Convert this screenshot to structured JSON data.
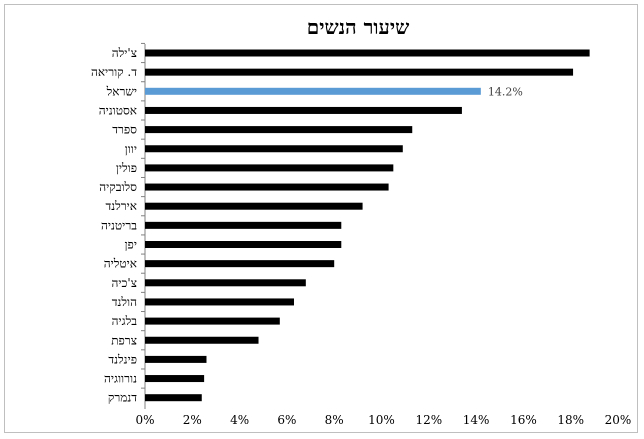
{
  "chart_data": {
    "type": "bar",
    "orientation": "horizontal",
    "title": "שיעור הנשים",
    "categories": [
      "צ'ילה",
      "ד. קוריאה",
      "ישראל",
      "אסטוניה",
      "ספרד",
      "יוון",
      "פולין",
      "סלובקיה",
      "אירלנד",
      "בריטניה",
      "יפן",
      "איטליה",
      "צ'כיה",
      "הולנד",
      "בלגיה",
      "צרפת",
      "פינלנד",
      "נורווגיה",
      "דנמרק"
    ],
    "values": [
      18.8,
      18.1,
      14.2,
      13.4,
      11.3,
      10.9,
      10.5,
      10.3,
      9.2,
      8.3,
      8.3,
      8.0,
      6.8,
      6.3,
      5.7,
      4.8,
      2.6,
      2.5,
      2.4
    ],
    "data_labels": {
      "ישראל": "14.2%"
    },
    "highlight": "ישראל",
    "xlim": [
      0,
      20
    ],
    "x_ticks": [
      "0%",
      "2%",
      "4%",
      "6%",
      "8%",
      "10%",
      "12%",
      "14%",
      "16%",
      "18%",
      "20%"
    ],
    "colors": {
      "default": "#000000",
      "highlight": "#5b9bd5"
    },
    "grid": false,
    "legend": "none"
  }
}
